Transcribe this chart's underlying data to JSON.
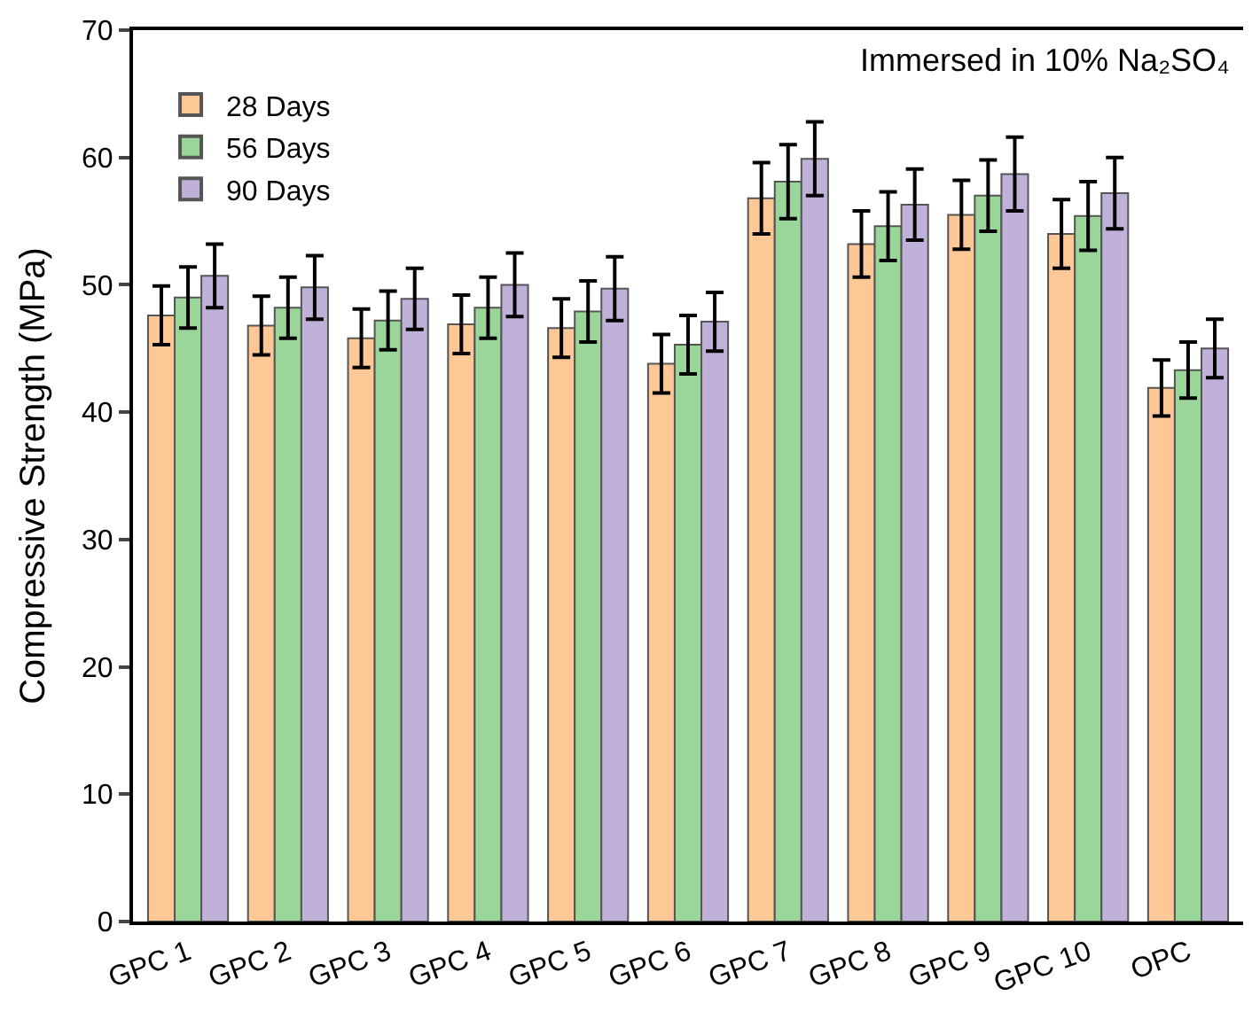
{
  "chart_data": {
    "type": "bar",
    "ylabel": "Compressive Strength (MPa)",
    "annotations": [
      "Immersed in 10% Na₂SO₄"
    ],
    "categories": [
      "GPC 1",
      "GPC 2",
      "GPC 3",
      "GPC 4",
      "GPC 5",
      "GPC 6",
      "GPC 7",
      "GPC 8",
      "GPC 9",
      "GPC 10",
      "OPC"
    ],
    "series": [
      {
        "name": "28 Days",
        "color": "#fdc896",
        "values": [
          47.6,
          46.8,
          45.8,
          46.9,
          46.6,
          43.8,
          56.8,
          53.2,
          55.5,
          54.0,
          41.9
        ],
        "errors": [
          2.3,
          2.3,
          2.3,
          2.3,
          2.3,
          2.3,
          2.8,
          2.6,
          2.7,
          2.7,
          2.2
        ]
      },
      {
        "name": "56 Days",
        "color": "#9ad69a",
        "values": [
          49.0,
          48.2,
          47.2,
          48.2,
          47.9,
          45.3,
          58.1,
          54.6,
          57.0,
          55.4,
          43.3
        ],
        "errors": [
          2.4,
          2.4,
          2.3,
          2.4,
          2.4,
          2.3,
          2.9,
          2.7,
          2.8,
          2.7,
          2.2
        ]
      },
      {
        "name": "90 Days",
        "color": "#c0b1d8",
        "values": [
          50.7,
          49.8,
          48.9,
          50.0,
          49.7,
          47.1,
          59.9,
          56.3,
          58.7,
          57.2,
          45.0
        ],
        "errors": [
          2.5,
          2.5,
          2.4,
          2.5,
          2.5,
          2.3,
          2.9,
          2.8,
          2.9,
          2.8,
          2.3
        ]
      }
    ],
    "ylim": [
      0,
      70
    ],
    "yticks": [
      0,
      10,
      20,
      30,
      40,
      50,
      60,
      70
    ],
    "legend": "top left"
  }
}
